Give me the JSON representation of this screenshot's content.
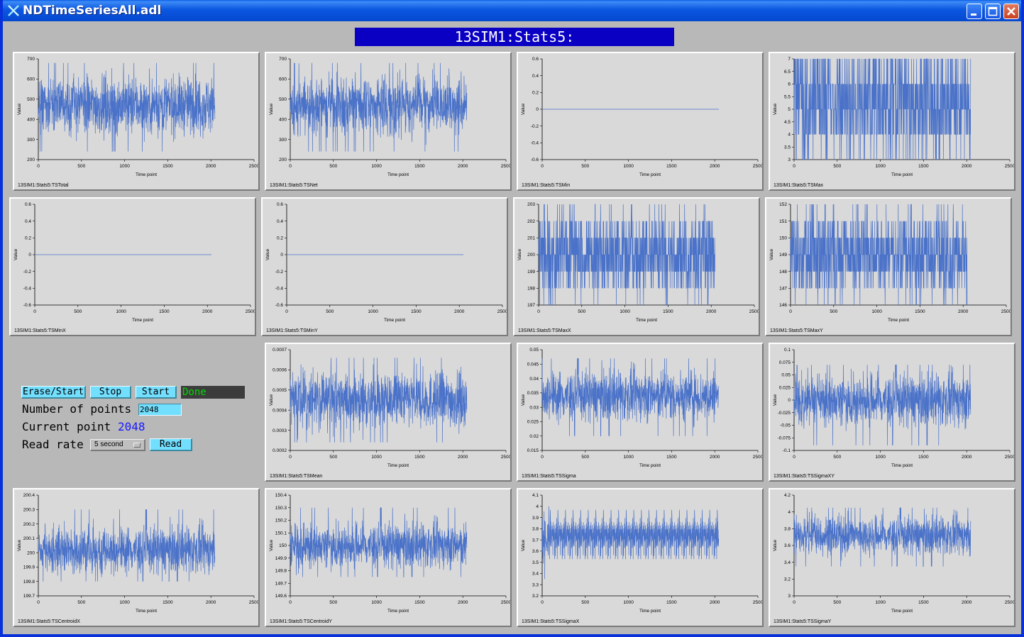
{
  "window": {
    "title": "NDTimeSeriesAll.adl",
    "icons": [
      "app-x-icon",
      "minimize-icon",
      "maximize-icon",
      "close-icon"
    ]
  },
  "banner": {
    "text": "13SIM1:Stats5:"
  },
  "controls": {
    "erase_start_label": "Erase/Start",
    "stop_label": "Stop",
    "start_label": "Start",
    "status": "Done",
    "num_points_label": "Number of points",
    "num_points_value": "2048",
    "current_point_label": "Current point",
    "current_point_value": "2048",
    "read_rate_label": "Read rate",
    "read_rate_value": "5 second",
    "read_label": "Read"
  },
  "colors": {
    "trace": "#4a72c9",
    "banner": "#0a00c4",
    "button": "#73dfff",
    "status_text": "#00d800",
    "value_text": "#1a1aff"
  },
  "chart_data": [
    {
      "type": "line",
      "label": "13SIM1:Stats5:TSTotal",
      "xlabel": "Time point",
      "ylabel": "Value",
      "xlim": [
        0,
        2500
      ],
      "xticks": [
        "0",
        "500",
        "1000",
        "1500",
        "2000",
        "2500"
      ],
      "ylim": [
        200,
        700
      ],
      "yticks": [
        "200",
        "300",
        "400",
        "500",
        "600",
        "700"
      ],
      "n_points": 2048,
      "signal": {
        "kind": "noise",
        "center": 470,
        "low": 240,
        "high": 680
      }
    },
    {
      "type": "line",
      "label": "13SIM1:Stats5:TSNet",
      "xlabel": "Time point",
      "ylabel": "Value",
      "xlim": [
        0,
        2500
      ],
      "xticks": [
        "0",
        "500",
        "1000",
        "1500",
        "2000",
        "2500"
      ],
      "ylim": [
        200,
        700
      ],
      "yticks": [
        "200",
        "300",
        "400",
        "500",
        "600",
        "700"
      ],
      "n_points": 2048,
      "signal": {
        "kind": "noise",
        "center": 470,
        "low": 240,
        "high": 680
      }
    },
    {
      "type": "line",
      "label": "13SIM1:Stats5:TSMin",
      "xlabel": "Time point",
      "ylabel": "Value",
      "xlim": [
        0,
        2500
      ],
      "xticks": [
        "0",
        "500",
        "1000",
        "1500",
        "2000",
        "2500"
      ],
      "ylim": [
        -0.6,
        0.6
      ],
      "yticks": [
        "-0.6",
        "-0.4",
        "-0.2",
        "0",
        "0.2",
        "0.4",
        "0.6"
      ],
      "n_points": 2048,
      "signal": {
        "kind": "flat",
        "center": 0
      }
    },
    {
      "type": "line",
      "label": "13SIM1:Stats5:TSMax",
      "xlabel": "Time point",
      "ylabel": "Value",
      "xlim": [
        0,
        2500
      ],
      "xticks": [
        "0",
        "500",
        "1000",
        "1500",
        "2000",
        "2500"
      ],
      "ylim": [
        3,
        7
      ],
      "yticks": [
        "3",
        "3.5",
        "4",
        "4.5",
        "5",
        "5.5",
        "6",
        "6.5",
        "7"
      ],
      "n_points": 2048,
      "signal": {
        "kind": "levels",
        "levels": [
          3,
          4,
          5,
          6,
          7
        ],
        "weights": [
          1,
          3,
          5,
          4,
          3
        ]
      }
    },
    {
      "type": "line",
      "label": "13SIM1:Stats5:TSMinX",
      "xlabel": "Time point",
      "ylabel": "Value",
      "xlim": [
        0,
        2500
      ],
      "xticks": [
        "0",
        "500",
        "1000",
        "1500",
        "2000",
        "2500"
      ],
      "ylim": [
        -0.6,
        0.6
      ],
      "yticks": [
        "-0.6",
        "-0.4",
        "-0.2",
        "0",
        "0.2",
        "0.4",
        "0.6"
      ],
      "n_points": 2048,
      "signal": {
        "kind": "flat",
        "center": 0
      }
    },
    {
      "type": "line",
      "label": "13SIM1:Stats5:TSMinY",
      "xlabel": "Time point",
      "ylabel": "Value",
      "xlim": [
        0,
        2500
      ],
      "xticks": [
        "0",
        "500",
        "1000",
        "1500",
        "2000",
        "2500"
      ],
      "ylim": [
        -0.6,
        0.6
      ],
      "yticks": [
        "-0.6",
        "-0.4",
        "-0.2",
        "0",
        "0.2",
        "0.4",
        "0.6"
      ],
      "n_points": 2048,
      "signal": {
        "kind": "flat",
        "center": 0
      }
    },
    {
      "type": "line",
      "label": "13SIM1:Stats5:TSMaxX",
      "xlabel": "Time point",
      "ylabel": "Value",
      "xlim": [
        0,
        2500
      ],
      "xticks": [
        "0",
        "500",
        "1000",
        "1500",
        "2000",
        "2500"
      ],
      "ylim": [
        197,
        203
      ],
      "yticks": [
        "197",
        "198",
        "199",
        "200",
        "201",
        "202",
        "203"
      ],
      "n_points": 2048,
      "signal": {
        "kind": "levels",
        "levels": [
          197,
          198,
          199,
          200,
          201,
          202,
          203
        ],
        "weights": [
          1,
          4,
          8,
          10,
          8,
          4,
          1
        ]
      }
    },
    {
      "type": "line",
      "label": "13SIM1:Stats5:TSMaxY",
      "xlabel": "Time point",
      "ylabel": "Value",
      "xlim": [
        0,
        2500
      ],
      "xticks": [
        "0",
        "500",
        "1000",
        "1500",
        "2000",
        "2500"
      ],
      "ylim": [
        146,
        152
      ],
      "yticks": [
        "146",
        "147",
        "148",
        "149",
        "150",
        "151",
        "152"
      ],
      "n_points": 2048,
      "signal": {
        "kind": "levels",
        "levels": [
          146,
          147,
          148,
          149,
          150,
          151,
          152
        ],
        "weights": [
          1,
          4,
          8,
          10,
          8,
          4,
          1
        ]
      }
    },
    {
      "type": "line",
      "label": "13SIM1:Stats5:TSMean",
      "xlabel": "Time point",
      "ylabel": "Value",
      "xlim": [
        0,
        2500
      ],
      "xticks": [
        "0",
        "500",
        "1000",
        "1500",
        "2000",
        "2500"
      ],
      "ylim": [
        0.0002,
        0.0007
      ],
      "yticks": [
        "0.0002",
        "0.0003",
        "0.0004",
        "0.0005",
        "0.0006",
        "0.0007"
      ],
      "n_points": 2048,
      "signal": {
        "kind": "noise",
        "center": 0.00045,
        "low": 0.00024,
        "high": 0.00066
      }
    },
    {
      "type": "line",
      "label": "13SIM1:Stats5:TSSigma",
      "xlabel": "Time point",
      "ylabel": "Value",
      "xlim": [
        0,
        2500
      ],
      "xticks": [
        "0",
        "500",
        "1000",
        "1500",
        "2000",
        "2500"
      ],
      "ylim": [
        0.015,
        0.05
      ],
      "yticks": [
        "0.015",
        "0.02",
        "0.025",
        "0.03",
        "0.035",
        "0.04",
        "0.045",
        "0.05"
      ],
      "n_points": 2048,
      "signal": {
        "kind": "noise",
        "center": 0.034,
        "low": 0.02,
        "high": 0.047
      }
    },
    {
      "type": "line",
      "label": "13SIM1:Stats5:TSSigmaXY",
      "xlabel": "Time point",
      "ylabel": "Value",
      "xlim": [
        0,
        2500
      ],
      "xticks": [
        "0",
        "500",
        "1000",
        "1500",
        "2000",
        "2500"
      ],
      "ylim": [
        -0.1,
        0.1
      ],
      "yticks": [
        "-0.1",
        "-0.075",
        "-0.05",
        "-0.025",
        "0",
        "0.025",
        "0.05",
        "0.075",
        "0.1"
      ],
      "n_points": 2048,
      "signal": {
        "kind": "noise",
        "center": 0,
        "low": -0.09,
        "high": 0.07
      }
    },
    {
      "type": "line",
      "label": "13SIM1:Stats5:TSCentroidX",
      "xlabel": "Time point",
      "ylabel": "Value",
      "xlim": [
        0,
        2500
      ],
      "xticks": [
        "0",
        "500",
        "1000",
        "1500",
        "2000",
        "2500"
      ],
      "ylim": [
        199.7,
        200.4
      ],
      "yticks": [
        "199.7",
        "199.8",
        "199.9",
        "200",
        "200.1",
        "200.2",
        "200.3",
        "200.4"
      ],
      "n_points": 2048,
      "signal": {
        "kind": "noise",
        "center": 200.02,
        "low": 199.8,
        "high": 200.3
      }
    },
    {
      "type": "line",
      "label": "13SIM1:Stats5:TSCentroidY",
      "xlabel": "Time point",
      "ylabel": "Value",
      "xlim": [
        0,
        2500
      ],
      "xticks": [
        "0",
        "500",
        "1000",
        "1500",
        "2000",
        "2500"
      ],
      "ylim": [
        149.6,
        150.4
      ],
      "yticks": [
        "149.6",
        "149.7",
        "149.8",
        "149.9",
        "150",
        "150.1",
        "150.2",
        "150.3",
        "150.4"
      ],
      "n_points": 2048,
      "signal": {
        "kind": "noise",
        "center": 150.0,
        "low": 149.75,
        "high": 150.3
      }
    },
    {
      "type": "line",
      "label": "13SIM1:Stats5:TSSigmaX",
      "xlabel": "Time point",
      "ylabel": "Value",
      "xlim": [
        0,
        2500
      ],
      "xticks": [
        "0",
        "500",
        "1000",
        "1500",
        "2000",
        "2500"
      ],
      "ylim": [
        3.2,
        4.1
      ],
      "yticks": [
        "3.2",
        "3.3",
        "3.4",
        "3.5",
        "3.6",
        "3.7",
        "3.8",
        "3.9",
        "4",
        "4.1"
      ],
      "n_points": 2048,
      "signal": {
        "kind": "noise",
        "center": 3.7,
        "low": 3.35,
        "high": 4.0
      }
    },
    {
      "type": "line",
      "label": "13SIM1:Stats5:TSSigmaY",
      "xlabel": "Time point",
      "ylabel": "Value",
      "xlim": [
        0,
        2500
      ],
      "xticks": [
        "0",
        "500",
        "1000",
        "1500",
        "2000",
        "2500"
      ],
      "ylim": [
        3,
        4.2
      ],
      "yticks": [
        "3",
        "3.2",
        "3.4",
        "3.6",
        "3.8",
        "4",
        "4.2"
      ],
      "n_points": 2048,
      "signal": {
        "kind": "noise",
        "center": 3.72,
        "low": 3.35,
        "high": 4.05
      }
    }
  ]
}
